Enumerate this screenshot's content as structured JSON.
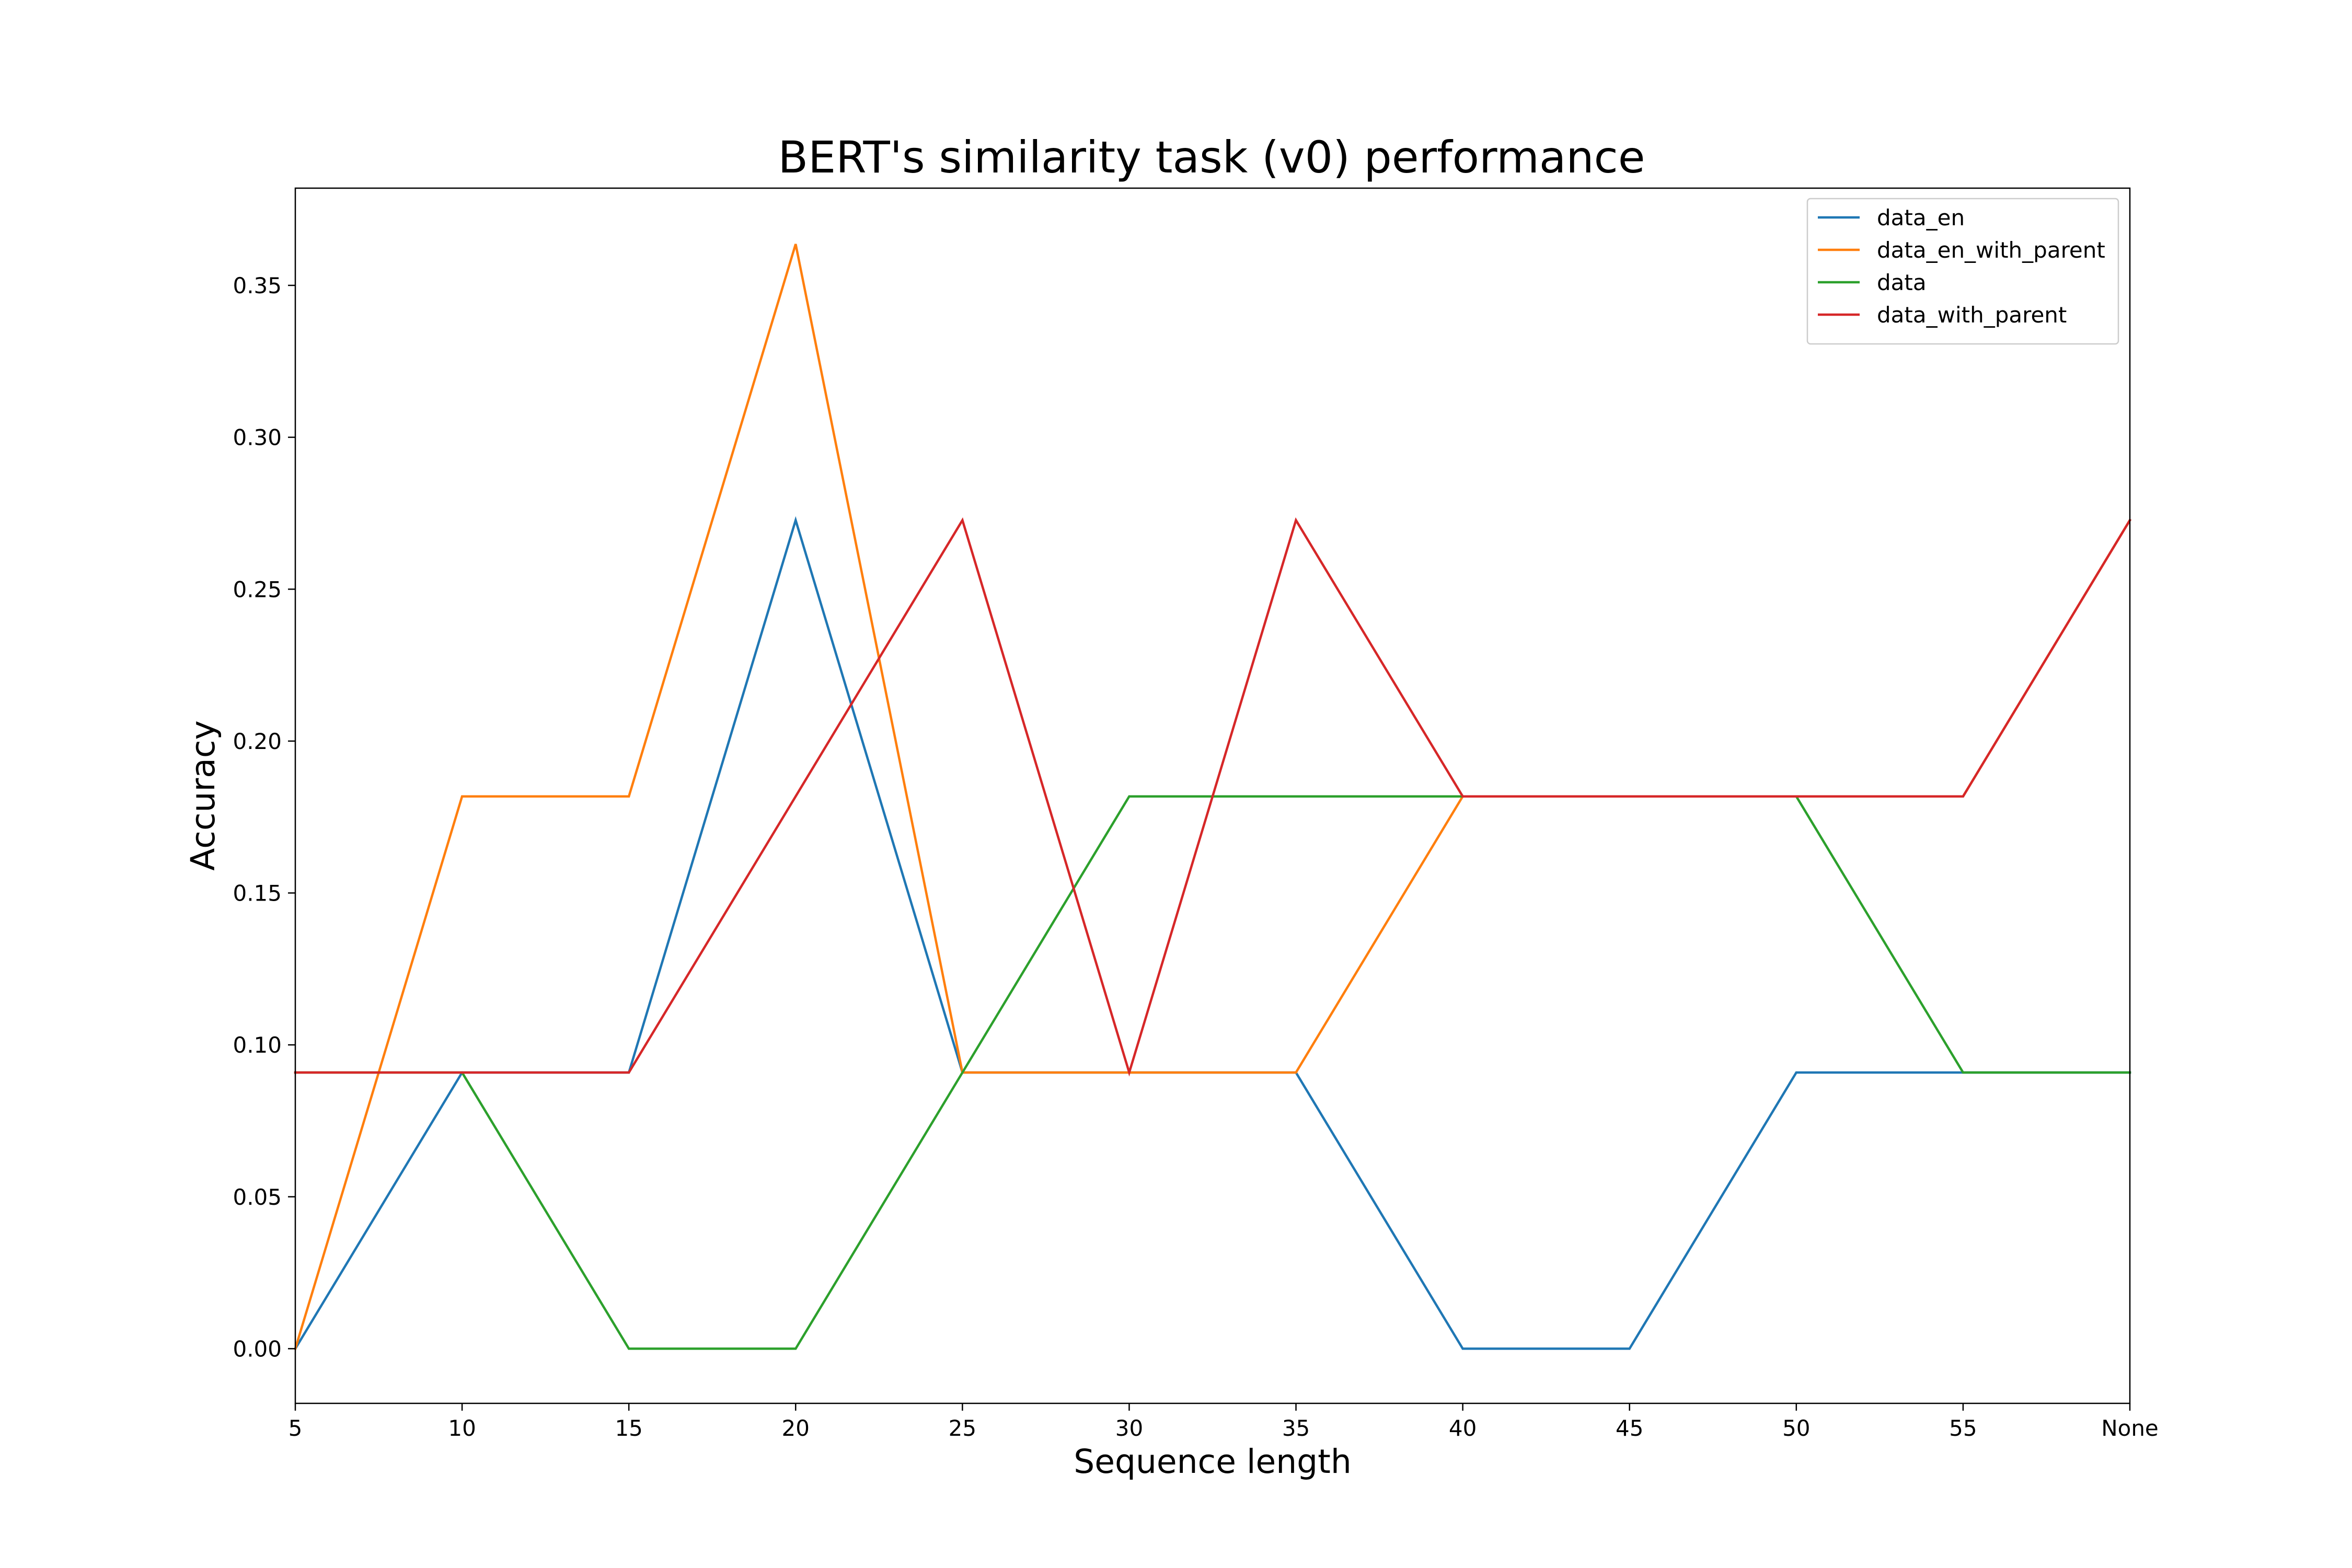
{
  "chart_data": {
    "type": "line",
    "title": "BERT's similarity task (v0) performance",
    "xlabel": "Sequence length",
    "ylabel": "Accuracy",
    "categories": [
      "5",
      "10",
      "15",
      "20",
      "25",
      "30",
      "35",
      "40",
      "45",
      "50",
      "55",
      "None"
    ],
    "yticks": [
      "0.00",
      "0.05",
      "0.10",
      "0.15",
      "0.20",
      "0.25",
      "0.30",
      "0.35"
    ],
    "ylim": [
      -0.018,
      0.382
    ],
    "grid": false,
    "legend_position": "top-right",
    "series": [
      {
        "name": "data_en",
        "color": "#1f77b4",
        "values": [
          0.0,
          0.0909,
          0.0909,
          0.2727,
          0.0909,
          0.0909,
          0.0909,
          0.0,
          0.0,
          0.0909,
          0.0909,
          0.0909
        ]
      },
      {
        "name": "data_en_with_parent",
        "color": "#ff7f0e",
        "values": [
          0.0,
          0.1818,
          0.1818,
          0.3636,
          0.0909,
          0.0909,
          0.0909,
          0.1818,
          0.1818,
          0.1818,
          0.1818,
          0.2727
        ]
      },
      {
        "name": "data",
        "color": "#2ca02c",
        "values": [
          0.0909,
          0.0909,
          0.0,
          0.0,
          0.0909,
          0.1818,
          0.1818,
          0.1818,
          0.1818,
          0.1818,
          0.0909,
          0.0909
        ]
      },
      {
        "name": "data_with_parent",
        "color": "#d62728",
        "values": [
          0.0909,
          0.0909,
          0.0909,
          0.1818,
          0.2727,
          0.0909,
          0.2727,
          0.1818,
          0.1818,
          0.1818,
          0.1818,
          0.2727
        ]
      }
    ]
  }
}
